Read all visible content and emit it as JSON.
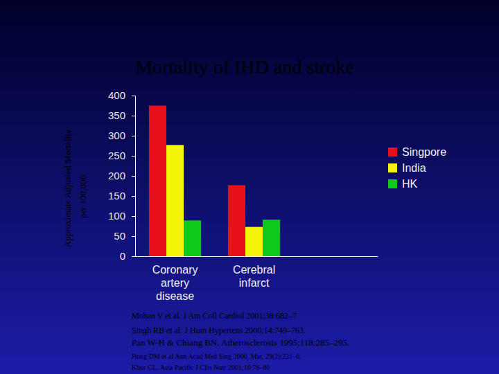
{
  "chart_data": {
    "type": "bar",
    "title": "Mortality of IHD and stroke",
    "y_label": [
      "Approximate Adjusted Mortality",
      "per 100,000"
    ],
    "categories": [
      "Coronary artery disease",
      "Cerebral infarct"
    ],
    "series": [
      {
        "name": "Singpore",
        "color": "#e8101a",
        "values": [
          375,
          177
        ]
      },
      {
        "name": "India",
        "color": "#f5f50a",
        "values": [
          277,
          73
        ]
      },
      {
        "name": "HK",
        "color": "#10c81a",
        "values": [
          89,
          91
        ]
      }
    ],
    "ylim": [
      0,
      400
    ],
    "yticks": [
      0,
      50,
      100,
      150,
      200,
      250,
      300,
      350,
      400
    ],
    "grid": false,
    "legend": "right",
    "data_labels": false,
    "notes": [
      "Mohan V et al. J Am Coll Cardiol 2001;38:682–7",
      "Singh RB et al. J Hum Hypertens 2000;14:749–763.",
      "Pan W-H & Chiang BN. Atherosclerosis 1995;118:285–295.",
      "Hong DM et al Ann Acad Med Sing 2000, Mar, 29(2):231–6.",
      "Khor GL. Asia Pacific J Clin Nutr 2001;10:76–80"
    ]
  }
}
